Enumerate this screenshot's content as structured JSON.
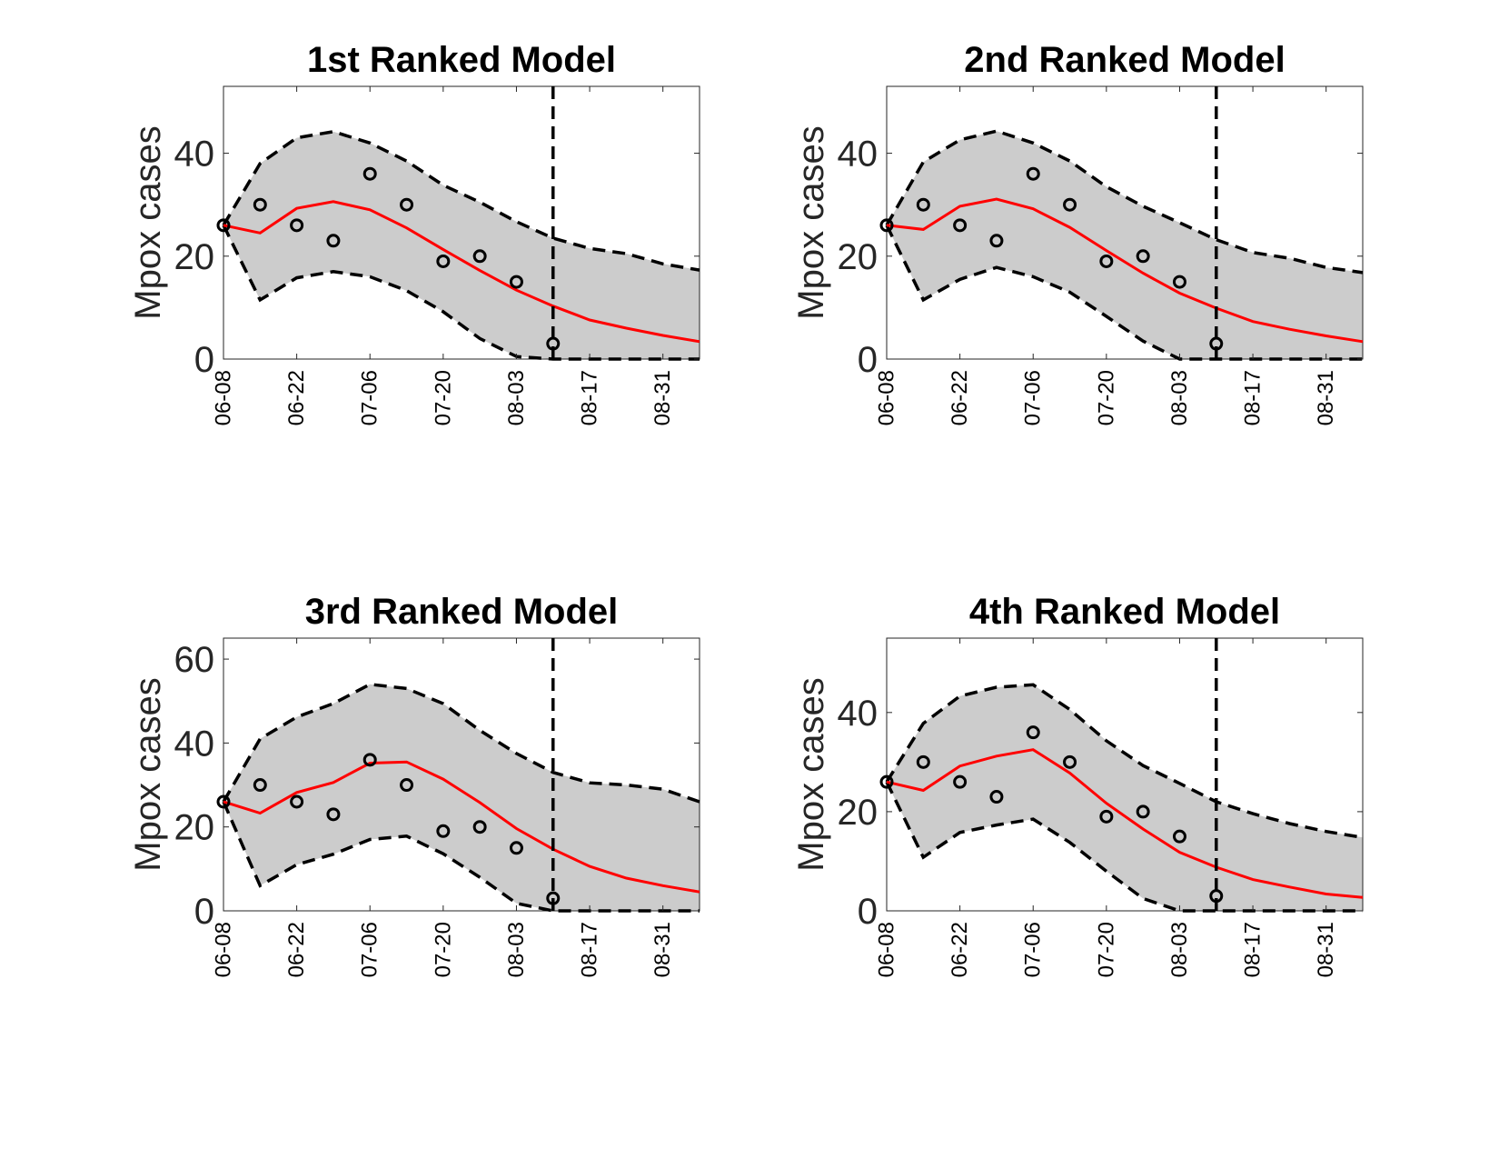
{
  "chart_data": [
    {
      "type": "line",
      "title": "1st Ranked Model",
      "ylabel": "Mpox cases",
      "xlabel": "",
      "x_tick_labels": [
        "06-08",
        "06-22",
        "07-06",
        "07-20",
        "08-03",
        "08-17",
        "08-31"
      ],
      "x": [
        0,
        7,
        14,
        21,
        28,
        35,
        42,
        49,
        56,
        63,
        70,
        77,
        84,
        91
      ],
      "ylim": [
        0,
        53
      ],
      "yticks": [
        "0",
        "20",
        "40"
      ],
      "forecast_start_x": 63,
      "series": [
        {
          "role": "model-fit",
          "color": "#ff0000",
          "values": [
            26,
            24.5,
            29.3,
            30.6,
            29,
            25.5,
            21.3,
            17.2,
            13.4,
            10.3,
            7.6,
            6,
            4.6,
            3.4
          ]
        },
        {
          "role": "upper-bound",
          "color": "#000000",
          "values": [
            26,
            38,
            43,
            44.2,
            42,
            38.5,
            33.8,
            30.5,
            26.7,
            23.5,
            21.5,
            20.5,
            18.5,
            17.3
          ]
        },
        {
          "role": "lower-bound",
          "color": "#000000",
          "values": [
            26,
            11.5,
            15.8,
            17,
            16,
            13.3,
            9.2,
            4,
            0.5,
            0,
            0,
            0,
            0,
            0
          ]
        }
      ],
      "observed": {
        "x": [
          0,
          7,
          14,
          21,
          28,
          35,
          42,
          49,
          56,
          63
        ],
        "values": [
          26,
          30,
          26,
          23,
          36,
          30,
          19,
          20,
          15,
          3
        ]
      }
    },
    {
      "type": "line",
      "title": "2nd Ranked Model",
      "ylabel": "Mpox cases",
      "xlabel": "",
      "x_tick_labels": [
        "06-08",
        "06-22",
        "07-06",
        "07-20",
        "08-03",
        "08-17",
        "08-31"
      ],
      "x": [
        0,
        7,
        14,
        21,
        28,
        35,
        42,
        49,
        56,
        63,
        70,
        77,
        84,
        91
      ],
      "ylim": [
        0,
        53
      ],
      "yticks": [
        "0",
        "20",
        "40"
      ],
      "forecast_start_x": 63,
      "series": [
        {
          "role": "model-fit",
          "color": "#ff0000",
          "values": [
            26,
            25.2,
            29.7,
            31.1,
            29.2,
            25.6,
            21.1,
            16.7,
            12.8,
            9.9,
            7.3,
            5.8,
            4.5,
            3.4
          ]
        },
        {
          "role": "upper-bound",
          "color": "#000000",
          "values": [
            26,
            38.3,
            42.6,
            44.3,
            42,
            38.5,
            33.5,
            29.7,
            26.5,
            23.2,
            20.7,
            19.6,
            17.8,
            16.8
          ]
        },
        {
          "role": "lower-bound",
          "color": "#000000",
          "values": [
            26,
            11.5,
            15.5,
            17.8,
            16,
            13,
            8.3,
            3.5,
            0,
            0,
            0,
            0,
            0,
            0
          ]
        }
      ],
      "observed": {
        "x": [
          0,
          7,
          14,
          21,
          28,
          35,
          42,
          49,
          56,
          63
        ],
        "values": [
          26,
          30,
          26,
          23,
          36,
          30,
          19,
          20,
          15,
          3
        ]
      }
    },
    {
      "type": "line",
      "title": "3rd Ranked Model",
      "ylabel": "Mpox cases",
      "xlabel": "",
      "x_tick_labels": [
        "06-08",
        "06-22",
        "07-06",
        "07-20",
        "08-03",
        "08-17",
        "08-31"
      ],
      "x": [
        0,
        7,
        14,
        21,
        28,
        35,
        42,
        49,
        56,
        63,
        70,
        77,
        84,
        91
      ],
      "ylim": [
        0,
        65
      ],
      "yticks": [
        "0",
        "20",
        "40",
        "60"
      ],
      "forecast_start_x": 63,
      "series": [
        {
          "role": "model-fit",
          "color": "#ff0000",
          "values": [
            26,
            23.3,
            28.2,
            30.6,
            35.2,
            35.5,
            31.4,
            25.8,
            19.6,
            14.7,
            10.6,
            7.8,
            6,
            4.5
          ]
        },
        {
          "role": "upper-bound",
          "color": "#000000",
          "values": [
            26,
            41,
            46.2,
            49.4,
            54,
            53,
            49.4,
            43,
            37.5,
            33,
            30.5,
            30,
            29,
            26
          ]
        },
        {
          "role": "lower-bound",
          "color": "#000000",
          "values": [
            26,
            6,
            11,
            13.5,
            17,
            17.8,
            13.6,
            8,
            1.8,
            0,
            0,
            0,
            0,
            0
          ]
        }
      ],
      "observed": {
        "x": [
          0,
          7,
          14,
          21,
          28,
          35,
          42,
          49,
          56,
          63
        ],
        "values": [
          26,
          30,
          26,
          23,
          36,
          30,
          19,
          20,
          15,
          3
        ]
      }
    },
    {
      "type": "line",
      "title": "4th Ranked Model",
      "ylabel": "Mpox cases",
      "xlabel": "",
      "x_tick_labels": [
        "06-08",
        "06-22",
        "07-06",
        "07-20",
        "08-03",
        "08-17",
        "08-31"
      ],
      "x": [
        0,
        7,
        14,
        21,
        28,
        35,
        42,
        49,
        56,
        63,
        70,
        77,
        84,
        91
      ],
      "ylim": [
        0,
        55
      ],
      "yticks": [
        "0",
        "20",
        "40"
      ],
      "forecast_start_x": 63,
      "series": [
        {
          "role": "model-fit",
          "color": "#ff0000",
          "values": [
            26,
            24.3,
            29.2,
            31.2,
            32.5,
            27.8,
            21.7,
            16.5,
            11.8,
            8.8,
            6.3,
            4.8,
            3.4,
            2.7
          ]
        },
        {
          "role": "upper-bound",
          "color": "#000000",
          "values": [
            26,
            37.8,
            43.3,
            45.1,
            45.6,
            40.6,
            34.3,
            29.3,
            25.7,
            22,
            19.6,
            17.6,
            16,
            14.8
          ]
        },
        {
          "role": "lower-bound",
          "color": "#000000",
          "values": [
            26,
            10.8,
            15.8,
            17.3,
            18.5,
            13.8,
            8,
            2.5,
            0,
            0,
            0,
            0,
            0,
            0
          ]
        }
      ],
      "observed": {
        "x": [
          0,
          7,
          14,
          21,
          28,
          35,
          42,
          49,
          56,
          63
        ],
        "values": [
          26,
          30,
          26,
          23,
          36,
          30,
          19,
          20,
          15,
          3
        ]
      }
    }
  ]
}
